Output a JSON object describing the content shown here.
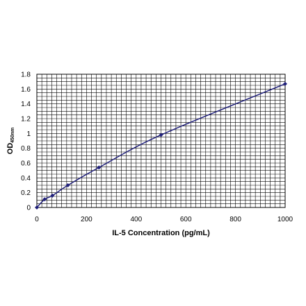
{
  "chart_data": {
    "type": "line",
    "xlabel": "IL-5 Concentration (pg/mL)",
    "ylabel_main": "OD",
    "ylabel_sub": "450nm",
    "xlim": [
      0,
      1000
    ],
    "ylim": [
      0,
      1.8
    ],
    "x_ticks": [
      0,
      200,
      400,
      600,
      800,
      1000
    ],
    "y_ticks": [
      0,
      0.2,
      0.4,
      0.6,
      0.8,
      1,
      1.2,
      1.4,
      1.6,
      1.8
    ],
    "x_tick_labels": [
      "0",
      "200",
      "400",
      "600",
      "800",
      "1000"
    ],
    "y_tick_labels": [
      "0",
      "0.2",
      "0.4",
      "0.6",
      "0.8",
      "1",
      "1.2",
      "1.4",
      "1.6",
      "1.8"
    ],
    "grid": true,
    "x_minor_step": 20,
    "y_minor_step": 0.05,
    "series": [
      {
        "x": [
          0,
          31.25,
          62.5,
          125,
          250,
          500,
          1000
        ],
        "y": [
          0.0,
          0.11,
          0.16,
          0.3,
          0.54,
          0.98,
          1.67
        ]
      }
    ],
    "colors": {
      "line": "#1f1f7a",
      "marker": "#1f1f7a",
      "grid": "#000000",
      "plot_bg": "#ffffff"
    }
  }
}
